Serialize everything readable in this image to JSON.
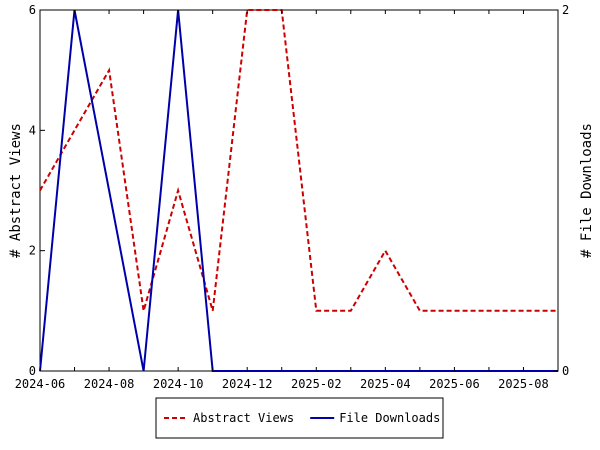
{
  "chart_data": {
    "type": "line",
    "title": "",
    "ylabel_left": "# Abstract Views",
    "ylabel_right": "# File Downloads",
    "x": [
      "2024-06",
      "2024-07",
      "2024-08",
      "2024-09",
      "2024-10",
      "2024-11",
      "2024-12",
      "2025-01",
      "2025-02",
      "2025-03",
      "2025-04",
      "2025-05",
      "2025-06",
      "2025-07",
      "2025-08",
      "2025-09"
    ],
    "xticks": [
      "2024-06",
      "2024-08",
      "2024-10",
      "2024-12",
      "2025-02",
      "2025-04",
      "2025-06",
      "2025-08"
    ],
    "ylim_left": [
      0,
      6
    ],
    "yticks_left": [
      0,
      2,
      4,
      6
    ],
    "ylim_right": [
      0,
      2
    ],
    "yticks_right": [
      0,
      2
    ],
    "grid": false,
    "legend_position": "bottom-center",
    "series": [
      {
        "name": "Abstract Views",
        "axis": "left",
        "color": "#cc0000",
        "dash": "dashed",
        "values": [
          3,
          4,
          5,
          1,
          3,
          1,
          6,
          6,
          1,
          1,
          2,
          1,
          1,
          1,
          1,
          1
        ]
      },
      {
        "name": "File Downloads",
        "axis": "right",
        "color": "#0000aa",
        "dash": "solid",
        "values": [
          0,
          2,
          1,
          0,
          2,
          0,
          0,
          0,
          0,
          0,
          0,
          0,
          0,
          0,
          0,
          0
        ]
      }
    ]
  }
}
